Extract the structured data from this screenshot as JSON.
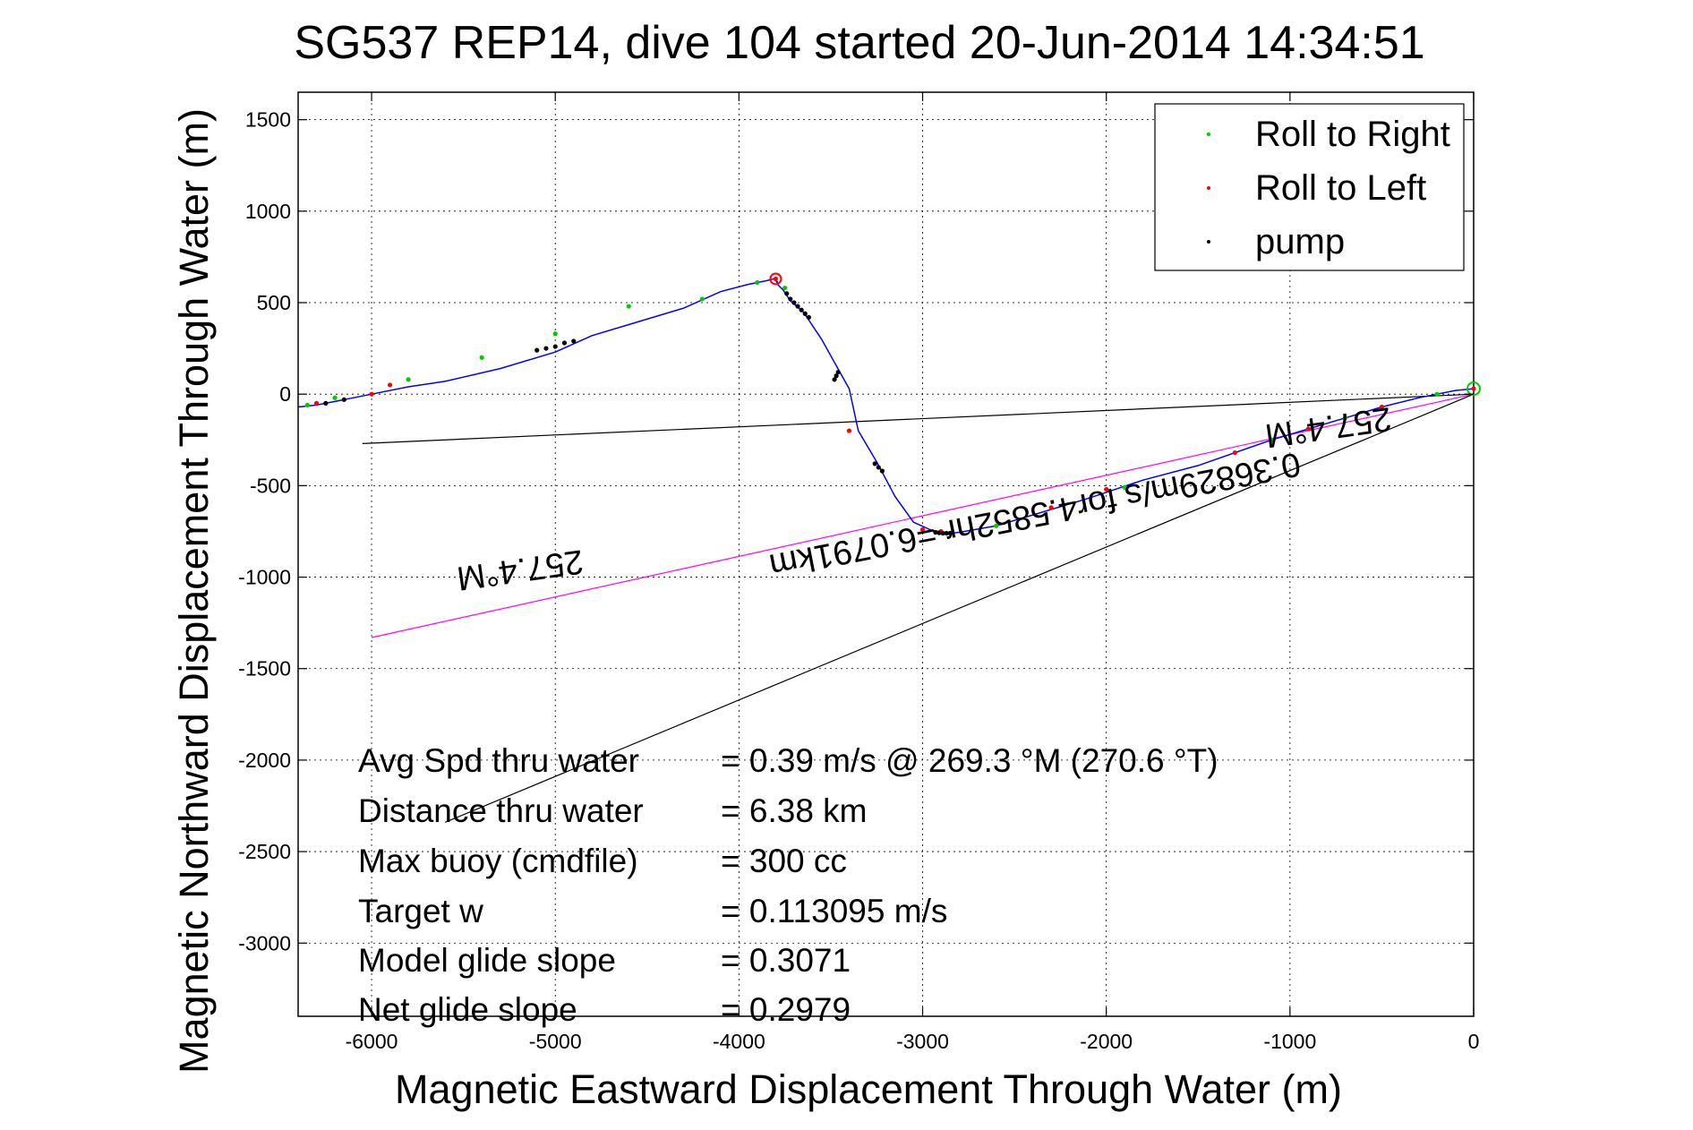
{
  "chart_data": {
    "type": "line",
    "title": "SG537 REP14, dive 104 started 20-Jun-2014 14:34:51",
    "xlabel": "Magnetic Eastward Displacement Through Water (m)",
    "ylabel": "Magnetic Northward Displacement Through Water (m)",
    "xlim": [
      -6400,
      0
    ],
    "ylim": [
      -3400,
      1650
    ],
    "xticks": [
      {
        "value": -6000,
        "label": "-6000"
      },
      {
        "value": -5000,
        "label": "-5000"
      },
      {
        "value": -4000,
        "label": "-4000"
      },
      {
        "value": -3000,
        "label": "-3000"
      },
      {
        "value": -2000,
        "label": "-2000"
      },
      {
        "value": -1000,
        "label": "-1000"
      },
      {
        "value": 0,
        "label": "0"
      }
    ],
    "yticks": [
      {
        "value": 1500,
        "label": "1500"
      },
      {
        "value": 1000,
        "label": "1000"
      },
      {
        "value": 500,
        "label": "500"
      },
      {
        "value": 0,
        "label": "0"
      },
      {
        "value": -500,
        "label": "-500"
      },
      {
        "value": -1000,
        "label": "-1000"
      },
      {
        "value": -1500,
        "label": "-1500"
      },
      {
        "value": -2000,
        "label": "-2000"
      },
      {
        "value": -2500,
        "label": "-2500"
      },
      {
        "value": -3000,
        "label": "-3000"
      }
    ],
    "grid": true,
    "legend_position": "top-right",
    "legend": [
      {
        "label": "Roll to Right",
        "color": "#00cc00"
      },
      {
        "label": "Roll to Left",
        "color": "#ff0000"
      },
      {
        "label": "pump",
        "color": "#000000"
      }
    ],
    "track": {
      "color": "#0000ff",
      "x": [
        0,
        -100,
        -200,
        -300,
        -500,
        -700,
        -900,
        -1100,
        -1300,
        -1500,
        -1800,
        -2100,
        -2400,
        -2600,
        -2800,
        -2850,
        -2950,
        -3050,
        -3150,
        -3250,
        -3350,
        -3400,
        -3450,
        -3550,
        -3650,
        -3720,
        -3760,
        -3790,
        -3800,
        -3790,
        -3810,
        -3850,
        -3950,
        -4100,
        -4300,
        -4600,
        -4800,
        -5000,
        -5300,
        -5600,
        -5800,
        -6000,
        -6100,
        -6200,
        -6300,
        -6400
      ],
      "y": [
        30,
        20,
        0,
        -20,
        -70,
        -130,
        -190,
        -250,
        -320,
        -390,
        -470,
        -570,
        -660,
        -720,
        -755,
        -760,
        -745,
        -700,
        -560,
        -370,
        -200,
        30,
        120,
        300,
        450,
        510,
        570,
        600,
        630,
        610,
        630,
        620,
        600,
        560,
        470,
        380,
        320,
        230,
        140,
        70,
        40,
        0,
        -20,
        -40,
        -60,
        -70
      ]
    },
    "markers": {
      "roll_right": {
        "x": [
          -200,
          -700,
          -1100,
          -1900,
          -2600,
          -3750,
          -3900,
          -4200,
          -4600,
          -5000,
          -5400,
          -5800,
          -6200,
          -6350
        ],
        "y": [
          0,
          -130,
          -250,
          -510,
          -720,
          580,
          610,
          520,
          480,
          330,
          200,
          80,
          -20,
          -60
        ]
      },
      "roll_left": {
        "x": [
          0,
          -500,
          -900,
          -1300,
          -2000,
          -2300,
          -2900,
          -3000,
          -3400,
          -3800,
          -5900,
          -6000,
          -6300
        ],
        "y": [
          30,
          -70,
          -190,
          -320,
          -520,
          -620,
          -750,
          -740,
          -200,
          630,
          50,
          0,
          -50
        ]
      },
      "pump": {
        "x": [
          -3620,
          -3640,
          -3660,
          -3680,
          -3700,
          -3720,
          -3740,
          -3460,
          -3470,
          -3480,
          -3260,
          -3240,
          -3220,
          -2850,
          -2870,
          -2890,
          -2910,
          -2930,
          -4900,
          -4950,
          -5000,
          -5050,
          -5100,
          -6150,
          -6250
        ],
        "y": [
          420,
          440,
          460,
          480,
          500,
          520,
          550,
          120,
          100,
          80,
          -380,
          -400,
          -420,
          -760,
          -760,
          -760,
          -758,
          -755,
          290,
          280,
          260,
          250,
          240,
          -30,
          -50
        ]
      }
    },
    "reference_lines": [
      {
        "color": "#000000",
        "x": [
          0,
          -6050
        ],
        "y": [
          0,
          -270
        ]
      },
      {
        "color": "#ff00ff",
        "x": [
          0,
          -6000
        ],
        "y": [
          0,
          -1330
        ]
      },
      {
        "color": "#000000",
        "x": [
          0,
          -5600
        ],
        "y": [
          0,
          -2340
        ]
      }
    ],
    "annotations": [
      {
        "text": "257.4°M",
        "x": -5200,
        "y": -900,
        "rotation_deg": 172
      },
      {
        "text": "257.4°M",
        "x": -800,
        "y": -120,
        "rotation_deg": 172
      },
      {
        "text": "0.36829m/s for4.5852hr =6.0791km",
        "x": -2400,
        "y": -600,
        "rotation_deg": 169
      }
    ],
    "stats": [
      {
        "label": "Avg Spd thru water",
        "value": "=  0.39 m/s @ 269.3 °M (270.6 °T)"
      },
      {
        "label": "Distance thru water",
        "value": "=  6.38 km"
      },
      {
        "label": "Max buoy (cmdfile)",
        "value": "= 300 cc"
      },
      {
        "label": "Target w",
        "value": "= 0.113095 m/s"
      },
      {
        "label": "Model glide slope",
        "value": "= 0.3071"
      },
      {
        "label": "Net glide slope",
        "value": "= 0.2979"
      }
    ]
  }
}
